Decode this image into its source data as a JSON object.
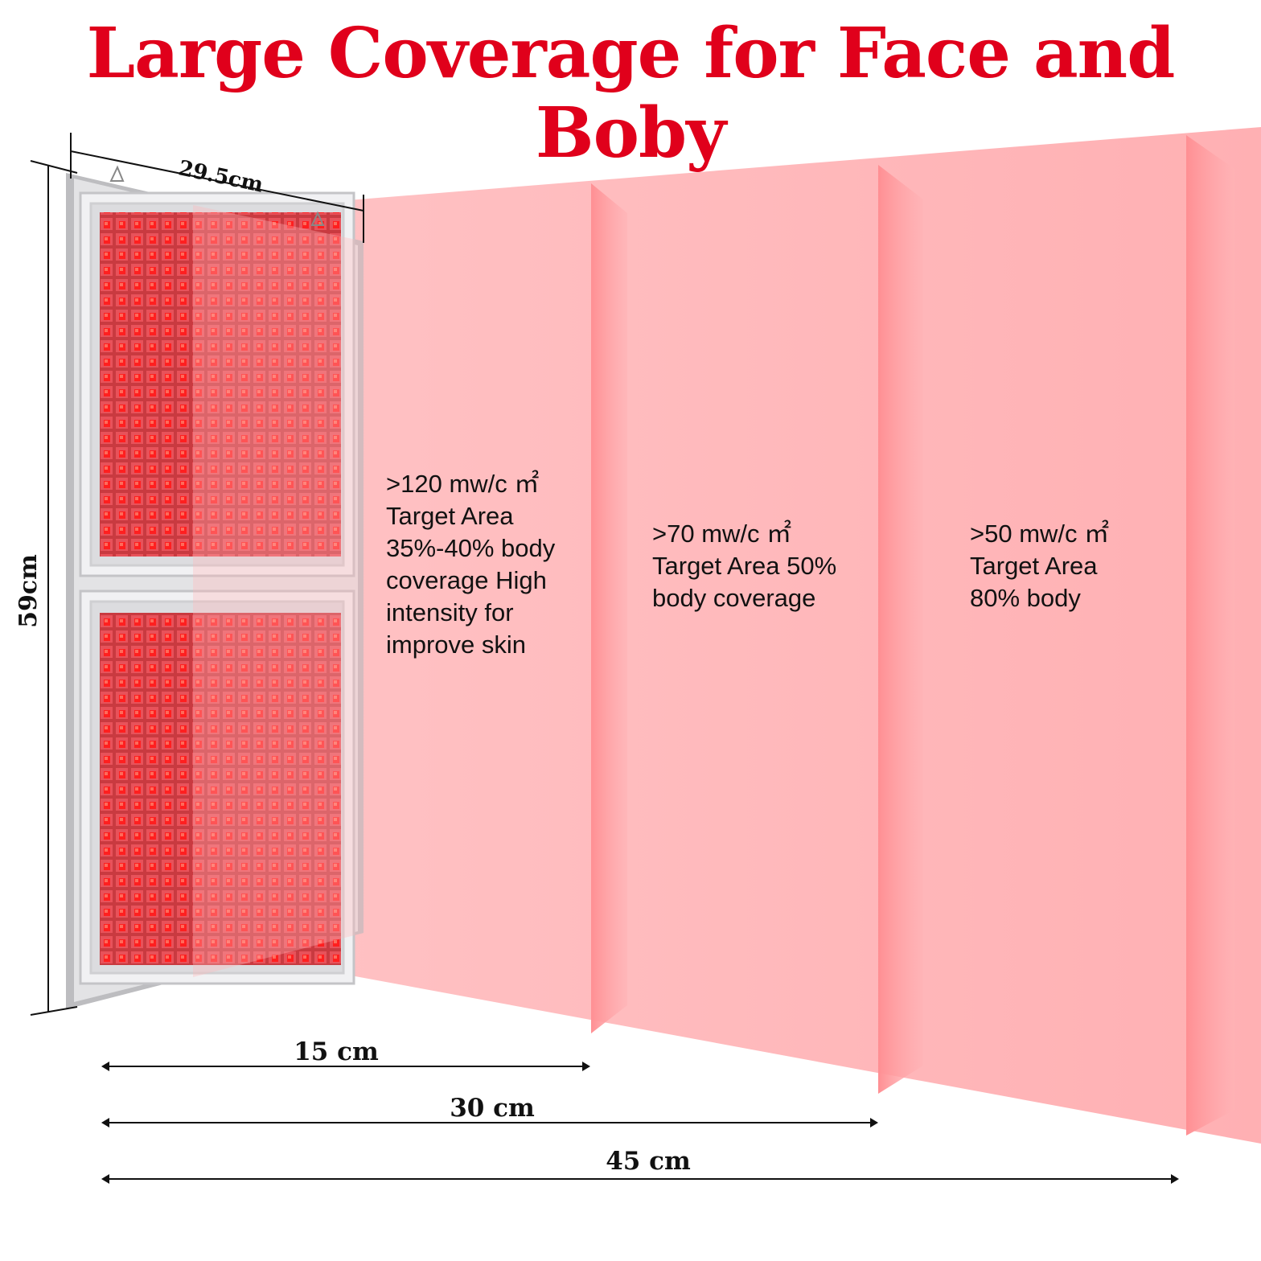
{
  "title": "Large Coverage for Face and Boby",
  "panel": {
    "width_label": "29.5cm",
    "height_label": "59cm"
  },
  "zones": [
    {
      "lines": [
        ">120 mw/c ㎡",
        "Target Area",
        "35%-40% body",
        "coverage High",
        "intensity for",
        "improve skin"
      ]
    },
    {
      "lines": [
        ">70 mw/c ㎡",
        "Target Area 50%",
        "body coverage"
      ]
    },
    {
      "lines": [
        ">50 mw/c ㎡",
        "Target Area",
        "80% body"
      ]
    }
  ],
  "distances": [
    "15 cm",
    "30 cm",
    "45 cm"
  ],
  "colors": {
    "title": "#e0001b",
    "light_beam": "#ffb3b6",
    "panel_frame": "#d9d9db",
    "led_cell": "#e8464d",
    "led_chip": "#ff1a1a"
  }
}
